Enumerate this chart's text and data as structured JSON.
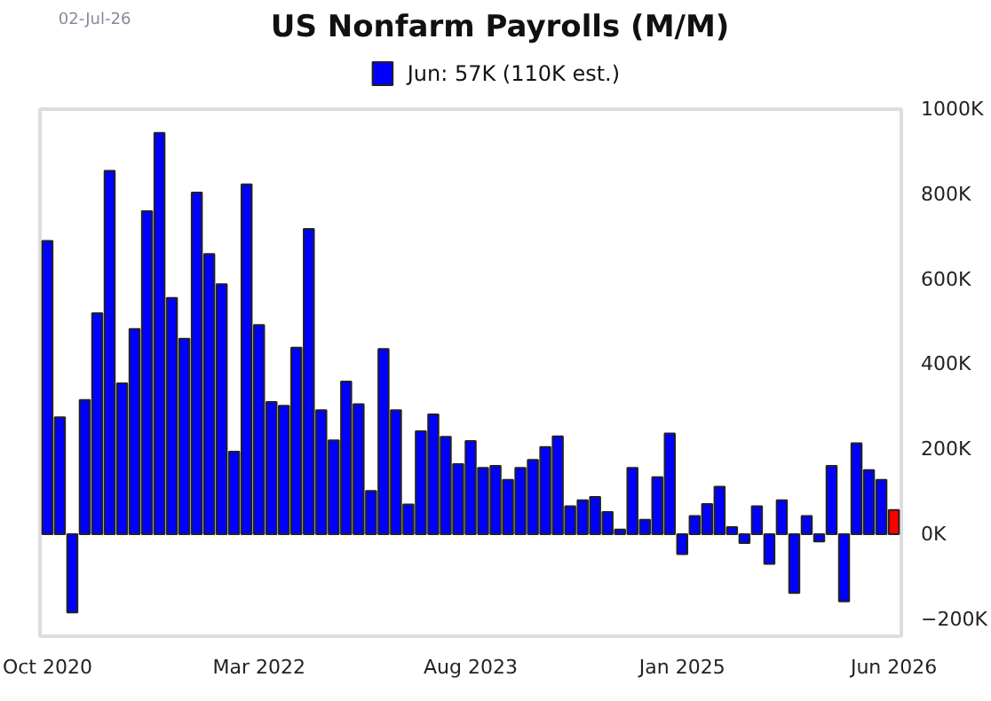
{
  "chart_data": {
    "type": "bar",
    "title": "US Nonfarm Payrolls (M/M)",
    "annotations": [
      "02-Jul-26"
    ],
    "categories": [
      "Oct 2020",
      null,
      null,
      null,
      null,
      null,
      null,
      null,
      null,
      null,
      null,
      null,
      null,
      null,
      null,
      null,
      null,
      "Mar 2022",
      null,
      null,
      null,
      null,
      null,
      null,
      null,
      null,
      null,
      null,
      null,
      null,
      null,
      null,
      null,
      null,
      "Aug 2023",
      null,
      null,
      null,
      null,
      null,
      null,
      null,
      null,
      null,
      null,
      null,
      null,
      null,
      null,
      null,
      null,
      "Jan 2025",
      null,
      null,
      null,
      null,
      null,
      null,
      null,
      null,
      null,
      null,
      null,
      null,
      null,
      null,
      null,
      null,
      "Jun 2026"
    ],
    "series": [
      {
        "name": "Jun: 57K (110K est.)",
        "color": "#0000ff",
        "values": [
          690,
          275,
          -184,
          316,
          520,
          855,
          355,
          483,
          760,
          944,
          556,
          460,
          804,
          659,
          588,
          194,
          823,
          492,
          311,
          302,
          439,
          718,
          292,
          221,
          359,
          306,
          102,
          436,
          292,
          70,
          242,
          282,
          229,
          165,
          219,
          156,
          161,
          128,
          156,
          175,
          205,
          230,
          66,
          80,
          88,
          52,
          11,
          156,
          34,
          134,
          237,
          -47,
          43,
          71,
          112,
          17,
          -21,
          66,
          -70,
          80,
          -138,
          43,
          -17,
          161,
          -158,
          214,
          151,
          128,
          57
        ],
        "colors": [
          "#0000ff",
          "#0000ff",
          "#0000ff",
          "#0000ff",
          "#0000ff",
          "#0000ff",
          "#0000ff",
          "#0000ff",
          "#0000ff",
          "#0000ff",
          "#0000ff",
          "#0000ff",
          "#0000ff",
          "#0000ff",
          "#0000ff",
          "#0000ff",
          "#0000ff",
          "#0000ff",
          "#0000ff",
          "#0000ff",
          "#0000ff",
          "#0000ff",
          "#0000ff",
          "#0000ff",
          "#0000ff",
          "#0000ff",
          "#0000ff",
          "#0000ff",
          "#0000ff",
          "#0000ff",
          "#0000ff",
          "#0000ff",
          "#0000ff",
          "#0000ff",
          "#0000ff",
          "#0000ff",
          "#0000ff",
          "#0000ff",
          "#0000ff",
          "#0000ff",
          "#0000ff",
          "#0000ff",
          "#0000ff",
          "#0000ff",
          "#0000ff",
          "#0000ff",
          "#0000ff",
          "#0000ff",
          "#0000ff",
          "#0000ff",
          "#0000ff",
          "#0000ff",
          "#0000ff",
          "#0000ff",
          "#0000ff",
          "#0000ff",
          "#0000ff",
          "#0000ff",
          "#0000ff",
          "#0000ff",
          "#0000ff",
          "#0000ff",
          "#0000ff",
          "#0000ff",
          "#0000ff",
          "#0000ff",
          "#0000ff",
          "#0000ff",
          "#ff0000"
        ]
      }
    ],
    "ylim": [
      -240,
      1000
    ],
    "yticks": [
      {
        "value": -200,
        "label": "−200K"
      },
      {
        "value": 0,
        "label": "0K"
      },
      {
        "value": 200,
        "label": "200K"
      },
      {
        "value": 400,
        "label": "400K"
      },
      {
        "value": 600,
        "label": "600K"
      },
      {
        "value": 800,
        "label": "800K"
      },
      {
        "value": 1000,
        "label": "1000K"
      }
    ],
    "grid": false,
    "legend": "top"
  }
}
